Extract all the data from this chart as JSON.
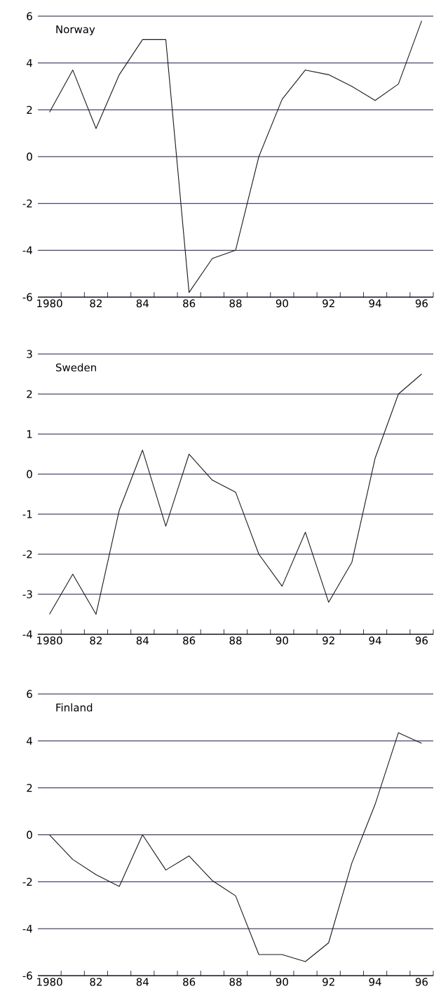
{
  "chart_data": [
    {
      "type": "line",
      "title": "Norway",
      "color": "#1a1a1a",
      "grid": "y",
      "x": [
        1980,
        1981,
        1982,
        1983,
        1984,
        1985,
        1986,
        1987,
        1988,
        1989,
        1990,
        1991,
        1992,
        1993,
        1994,
        1995,
        1996
      ],
      "values": [
        1.9,
        3.7,
        1.2,
        3.5,
        5.0,
        5.0,
        -5.8,
        -4.35,
        -4.0,
        0.0,
        2.45,
        3.7,
        3.5,
        3.0,
        2.4,
        3.1,
        5.8
      ],
      "xlim": [
        1979.5,
        1996.5
      ],
      "xticks": [
        {
          "value": 1980,
          "label": "1980"
        },
        {
          "value": 1982,
          "label": "82"
        },
        {
          "value": 1984,
          "label": "84"
        },
        {
          "value": 1986,
          "label": "86"
        },
        {
          "value": 1988,
          "label": "88"
        },
        {
          "value": 1990,
          "label": "90"
        },
        {
          "value": 1992,
          "label": "92"
        },
        {
          "value": 1994,
          "label": "94"
        },
        {
          "value": 1996,
          "label": "96"
        },
        {
          "value": 1980.5,
          "label": null
        },
        {
          "value": 1981.5,
          "label": null
        },
        {
          "value": 1982.5,
          "label": null
        },
        {
          "value": 1983.5,
          "label": null
        },
        {
          "value": 1984.5,
          "label": null
        },
        {
          "value": 1985.5,
          "label": null
        },
        {
          "value": 1986.5,
          "label": null
        },
        {
          "value": 1987.5,
          "label": null
        },
        {
          "value": 1988.5,
          "label": null
        },
        {
          "value": 1989.5,
          "label": null
        },
        {
          "value": 1990.5,
          "label": null
        },
        {
          "value": 1991.5,
          "label": null
        },
        {
          "value": 1992.5,
          "label": null
        },
        {
          "value": 1993.5,
          "label": null
        },
        {
          "value": 1994.5,
          "label": null
        },
        {
          "value": 1995.5,
          "label": null
        },
        {
          "value": 1996.5,
          "label": null
        }
      ],
      "ylim": [
        -6,
        6
      ],
      "yticks": [
        -6,
        -4,
        -2,
        0,
        2,
        4,
        6
      ]
    },
    {
      "type": "line",
      "title": "Sweden",
      "color": "#1a1a1a",
      "grid": "y",
      "x": [
        1980,
        1981,
        1982,
        1983,
        1984,
        1985,
        1986,
        1987,
        1988,
        1989,
        1990,
        1991,
        1992,
        1993,
        1994,
        1995,
        1996
      ],
      "values": [
        -3.5,
        -2.5,
        -3.5,
        -0.9,
        0.6,
        -1.3,
        0.5,
        -0.15,
        -0.45,
        -2.0,
        -2.8,
        -1.45,
        -3.2,
        -2.2,
        0.4,
        2.0,
        2.5
      ],
      "xlim": [
        1979.5,
        1996.5
      ],
      "xticks": [
        {
          "value": 1980,
          "label": "1980"
        },
        {
          "value": 1982,
          "label": "82"
        },
        {
          "value": 1984,
          "label": "84"
        },
        {
          "value": 1986,
          "label": "86"
        },
        {
          "value": 1988,
          "label": "88"
        },
        {
          "value": 1990,
          "label": "90"
        },
        {
          "value": 1992,
          "label": "92"
        },
        {
          "value": 1994,
          "label": "94"
        },
        {
          "value": 1996,
          "label": "96"
        },
        {
          "value": 1980.5,
          "label": null
        },
        {
          "value": 1981.5,
          "label": null
        },
        {
          "value": 1982.5,
          "label": null
        },
        {
          "value": 1983.5,
          "label": null
        },
        {
          "value": 1984.5,
          "label": null
        },
        {
          "value": 1985.5,
          "label": null
        },
        {
          "value": 1986.5,
          "label": null
        },
        {
          "value": 1987.5,
          "label": null
        },
        {
          "value": 1988.5,
          "label": null
        },
        {
          "value": 1989.5,
          "label": null
        },
        {
          "value": 1990.5,
          "label": null
        },
        {
          "value": 1991.5,
          "label": null
        },
        {
          "value": 1992.5,
          "label": null
        },
        {
          "value": 1993.5,
          "label": null
        },
        {
          "value": 1994.5,
          "label": null
        },
        {
          "value": 1995.5,
          "label": null
        },
        {
          "value": 1996.5,
          "label": null
        }
      ],
      "ylim": [
        -4,
        3
      ],
      "yticks": [
        -4,
        -3,
        -2,
        -1,
        0,
        1,
        2,
        3
      ]
    },
    {
      "type": "line",
      "title": "Finland",
      "color": "#1a1a1a",
      "grid": "y",
      "x": [
        1980,
        1981,
        1982,
        1983,
        1984,
        1985,
        1986,
        1987,
        1988,
        1989,
        1990,
        1991,
        1992,
        1993,
        1994,
        1995,
        1996
      ],
      "values": [
        0.0,
        -1.05,
        -1.7,
        -2.2,
        0.0,
        -1.5,
        -0.9,
        -1.95,
        -2.6,
        -5.1,
        -5.1,
        -5.4,
        -4.6,
        -1.2,
        1.3,
        4.35,
        3.9
      ],
      "xlim": [
        1979.5,
        1996.5
      ],
      "xticks": [
        {
          "value": 1980,
          "label": "1980"
        },
        {
          "value": 1982,
          "label": "82"
        },
        {
          "value": 1984,
          "label": "84"
        },
        {
          "value": 1986,
          "label": "86"
        },
        {
          "value": 1988,
          "label": "88"
        },
        {
          "value": 1990,
          "label": "90"
        },
        {
          "value": 1992,
          "label": "92"
        },
        {
          "value": 1994,
          "label": "94"
        },
        {
          "value": 1996,
          "label": "96"
        },
        {
          "value": 1980.5,
          "label": null
        },
        {
          "value": 1981.5,
          "label": null
        },
        {
          "value": 1982.5,
          "label": null
        },
        {
          "value": 1983.5,
          "label": null
        },
        {
          "value": 1984.5,
          "label": null
        },
        {
          "value": 1985.5,
          "label": null
        },
        {
          "value": 1986.5,
          "label": null
        },
        {
          "value": 1987.5,
          "label": null
        },
        {
          "value": 1988.5,
          "label": null
        },
        {
          "value": 1989.5,
          "label": null
        },
        {
          "value": 1990.5,
          "label": null
        },
        {
          "value": 1991.5,
          "label": null
        },
        {
          "value": 1992.5,
          "label": null
        },
        {
          "value": 1993.5,
          "label": null
        },
        {
          "value": 1994.5,
          "label": null
        },
        {
          "value": 1995.5,
          "label": null
        },
        {
          "value": 1996.5,
          "label": null
        }
      ],
      "ylim": [
        -6,
        6
      ],
      "yticks": [
        -6,
        -4,
        -2,
        0,
        2,
        4,
        6
      ]
    }
  ]
}
